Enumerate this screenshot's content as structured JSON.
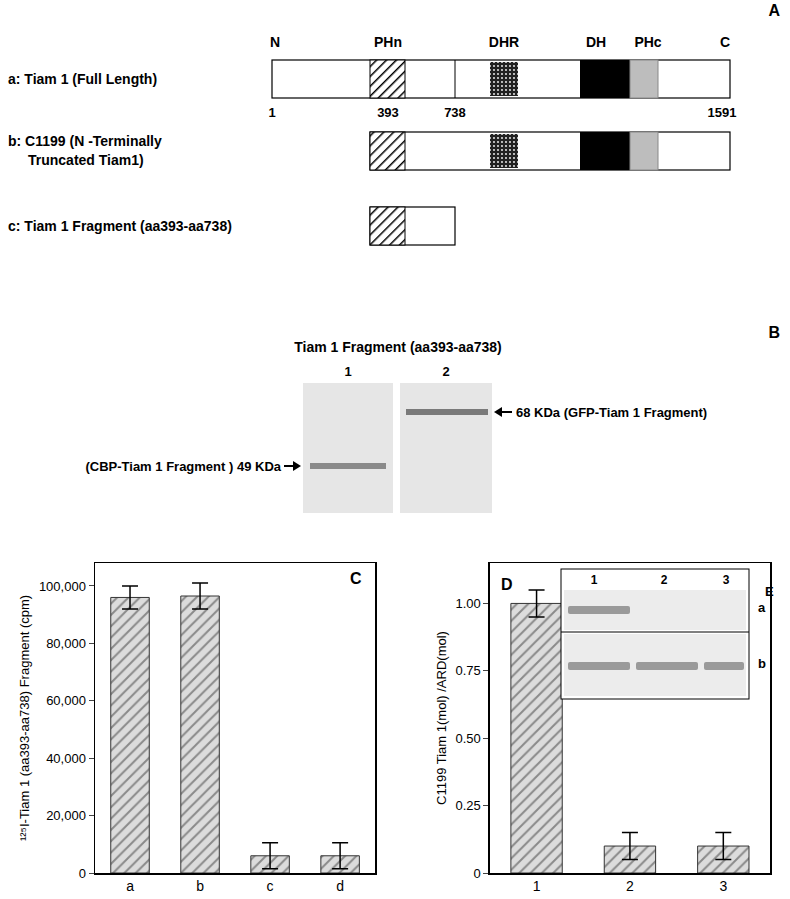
{
  "figure": {
    "panel_a": {
      "annotation": "A",
      "domain_labels": [
        "N",
        "PHn",
        "DHR",
        "DH",
        "PHc",
        "C"
      ],
      "positions": [
        1,
        393,
        738,
        1591
      ],
      "constructs": [
        {
          "label": [
            "a: Tiam 1 (Full Length)"
          ]
        },
        {
          "label": [
            "b: C1199 (N -Terminally",
            "Truncated Tiam1)"
          ]
        },
        {
          "label": [
            "c: Tiam 1 Fragment (aa393-aa738)"
          ]
        }
      ]
    },
    "panel_b": {
      "annotation": "B",
      "title": "Tiam 1 Fragment (aa393-aa738)",
      "lanes": [
        "1",
        "2"
      ],
      "left_label": "(CBP-Tiam 1 Fragment ) 49 KDa",
      "right_label": "68 KDa (GFP-Tiam 1 Fragment)"
    },
    "panel_e": {
      "annotation": "E",
      "lanes": [
        "1",
        "2",
        "3"
      ],
      "rows": [
        {
          "label": "a",
          "bands": [
            true,
            false,
            false
          ]
        },
        {
          "label": "b",
          "bands": [
            true,
            true,
            true
          ]
        }
      ]
    }
  },
  "chart_data": [
    {
      "type": "bar",
      "annotation": "C",
      "y_label": "¹²⁵I-Tiam 1 (aa393-aa738) Fragment (cpm)",
      "categories": [
        "a",
        "b",
        "c",
        "d"
      ],
      "values": [
        96000,
        96500,
        6000,
        6000
      ],
      "errors": [
        4000,
        4500,
        4500,
        4500
      ],
      "color": "#dcdcdc",
      "ylim": [
        0,
        108000
      ],
      "yticks": [
        0,
        {
          "value": 20000,
          "label": "20,000"
        },
        {
          "value": 40000,
          "label": "40,000"
        },
        {
          "value": 60000,
          "label": "60,000"
        },
        {
          "value": 80000,
          "label": "80,000"
        },
        {
          "value": 100000,
          "label": "100,000"
        }
      ],
      "grid": false
    },
    {
      "type": "bar",
      "annotation": "D",
      "y_label": "C1199 Tiam 1(mol) /ARD(mol)",
      "categories": [
        "1",
        "2",
        "3"
      ],
      "values": [
        1.0,
        0.1,
        0.1
      ],
      "errors": [
        0.05,
        0.05,
        0.05
      ],
      "color": "#dcdcdc",
      "ylim": [
        0,
        1.15
      ],
      "yticks": [
        0,
        0.25,
        {
          "value": 0.5,
          "label": "0.50"
        },
        0.75,
        {
          "value": 1.0,
          "label": "1.00"
        }
      ],
      "grid": false
    }
  ]
}
